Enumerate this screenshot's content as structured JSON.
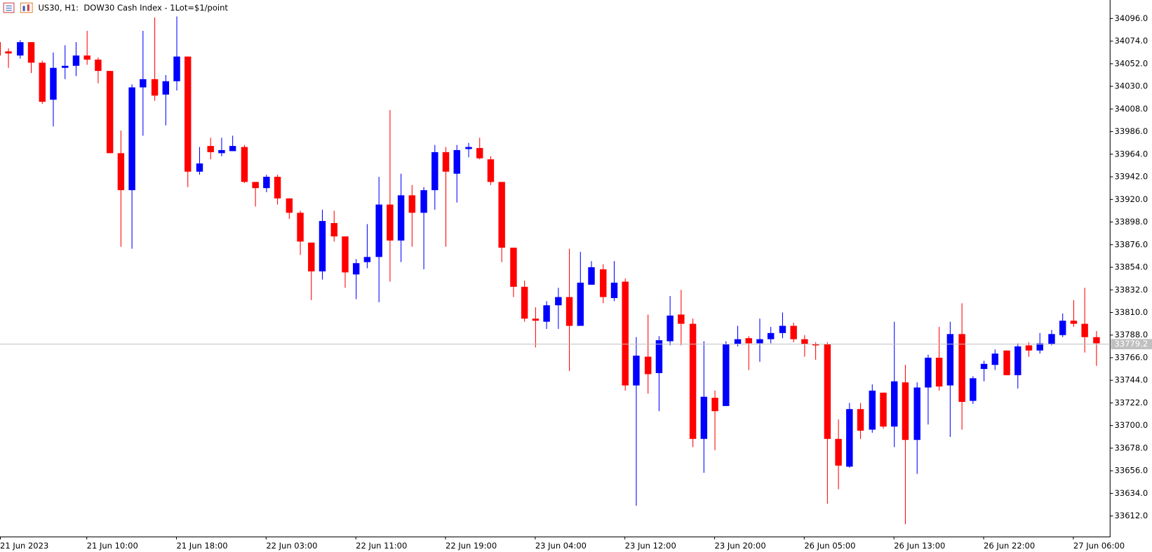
{
  "chart_data": {
    "type": "candlestick",
    "title": "US30, H1:  DOW30 Cash Index - 1Lot=$1/point",
    "up_color": "#0000ff",
    "down_color": "#ff0000",
    "categories": [
      "21 Jun 2023",
      null,
      null,
      null,
      null,
      null,
      null,
      null,
      "21 Jun 10:00",
      null,
      null,
      null,
      null,
      null,
      null,
      null,
      "21 Jun 18:00",
      null,
      null,
      null,
      null,
      null,
      null,
      null,
      "22 Jun 03:00",
      null,
      null,
      null,
      null,
      null,
      null,
      null,
      "22 Jun 11:00",
      null,
      null,
      null,
      null,
      null,
      null,
      null,
      "22 Jun 19:00",
      null,
      null,
      null,
      null,
      null,
      null,
      null,
      "23 Jun 04:00",
      null,
      null,
      null,
      null,
      null,
      null,
      null,
      "23 Jun 12:00",
      null,
      null,
      null,
      null,
      null,
      null,
      null,
      "23 Jun 20:00",
      null,
      null,
      null,
      null,
      null,
      null,
      null,
      "26 Jun 05:00",
      null,
      null,
      null,
      null,
      null,
      null,
      null,
      "26 Jun 13:00",
      null,
      null,
      null,
      null,
      null,
      null,
      null,
      "26 Jun 22:00",
      null,
      null,
      null,
      null,
      null,
      null,
      null,
      "27 Jun 06:00",
      null,
      null
    ],
    "open": [
      34073,
      34064,
      34060,
      34073,
      34053,
      34017,
      34048,
      34050,
      34060,
      34056,
      34045,
      33965,
      33929,
      34029,
      34037,
      34022,
      34035,
      34059,
      33947,
      33972,
      33965,
      33967,
      33971,
      33937,
      33931,
      33942,
      33921,
      33907,
      33878,
      33850,
      33897,
      33884,
      33847,
      33859,
      33864,
      33915,
      33880,
      33924,
      33907,
      33929,
      33966,
      33945,
      33969,
      33970,
      33959,
      33937,
      33873,
      33835,
      33804,
      33801,
      33817,
      33825,
      33797,
      33837,
      33852,
      33824,
      33840,
      33739,
      33767,
      33751,
      33782,
      33808,
      33799,
      33687,
      33727,
      33719,
      33779,
      33785,
      33780,
      33784,
      33790,
      33797,
      33784,
      33779,
      33779,
      33687,
      33660,
      33716,
      33696,
      33732,
      33699,
      33742,
      33686,
      33737,
      33766,
      33739,
      33789,
      33724,
      33755,
      33759,
      33773,
      33749,
      33778,
      33773,
      33779,
      33788,
      33802,
      33799,
      33786
    ],
    "high": [
      34073,
      34067,
      34075,
      34073,
      34055,
      34063,
      34070,
      34073,
      34084,
      34058,
      34045,
      33987,
      34032,
      34084,
      34097,
      34041,
      34098,
      34059,
      33971,
      33980,
      33980,
      33982,
      33973,
      33937,
      33944,
      33944,
      33921,
      33909,
      33878,
      33910,
      33909,
      33884,
      33862,
      33896,
      33942,
      34007,
      33945,
      33934,
      33932,
      33973,
      33971,
      33973,
      33975,
      33980,
      33962,
      33937,
      33873,
      33841,
      33815,
      33821,
      33834,
      33872,
      33869,
      33860,
      33857,
      33860,
      33843,
      33786,
      33808,
      33787,
      33826,
      33832,
      33804,
      33782,
      33734,
      33782,
      33797,
      33787,
      33804,
      33796,
      33810,
      33800,
      33788,
      33781,
      33781,
      33706,
      33722,
      33722,
      33740,
      33732,
      33801,
      33759,
      33742,
      33769,
      33796,
      33801,
      33819,
      33748,
      33763,
      33774,
      33773,
      33780,
      33781,
      33790,
      33793,
      33809,
      33822,
      33834,
      33792
    ],
    "low": [
      34060,
      34048,
      34057,
      34043,
      34013,
      33991,
      34037,
      34040,
      34051,
      34033,
      33965,
      33874,
      33872,
      33982,
      34016,
      33992,
      34026,
      33932,
      33944,
      33959,
      33962,
      33967,
      33936,
      33913,
      33927,
      33915,
      33901,
      33866,
      33822,
      33842,
      33879,
      33834,
      33823,
      33853,
      33820,
      33840,
      33859,
      33874,
      33852,
      33910,
      33874,
      33917,
      33961,
      33959,
      33934,
      33859,
      33825,
      33801,
      33776,
      33794,
      33794,
      33753,
      33797,
      33837,
      33819,
      33821,
      33734,
      33622,
      33731,
      33714,
      33778,
      33778,
      33679,
      33654,
      33676,
      33719,
      33777,
      33754,
      33762,
      33780,
      33785,
      33781,
      33767,
      33764,
      33624,
      33638,
      33659,
      33687,
      33693,
      33697,
      33679,
      33604,
      33653,
      33701,
      33734,
      33689,
      33696,
      33721,
      33743,
      33754,
      33749,
      33736,
      33767,
      33770,
      33778,
      33786,
      33796,
      33771,
      33758
    ],
    "close": [
      34060,
      34062,
      34073,
      34053,
      34015,
      34048,
      34050,
      34060,
      34056,
      34045,
      33965,
      33929,
      34029,
      34037,
      34021,
      34035,
      34059,
      33947,
      33955,
      33966,
      33968,
      33972,
      33937,
      33931,
      33942,
      33921,
      33907,
      33879,
      33850,
      33899,
      33884,
      33849,
      33858,
      33864,
      33915,
      33880,
      33924,
      33907,
      33929,
      33966,
      33947,
      33968,
      33971,
      33960,
      33937,
      33873,
      33835,
      33804,
      33802,
      33817,
      33825,
      33797,
      33839,
      33854,
      33825,
      33839,
      33739,
      33768,
      33750,
      33783,
      33807,
      33799,
      33687,
      33728,
      33714,
      33779,
      33784,
      33780,
      33784,
      33790,
      33797,
      33784,
      33779,
      33778,
      33687,
      33661,
      33716,
      33695,
      33734,
      33699,
      33743,
      33686,
      33737,
      33766,
      33738,
      33789,
      33723,
      33746,
      33760,
      33770,
      33749,
      33777,
      33773,
      33780,
      33789,
      33802,
      33799,
      33786,
      33780
    ],
    "current_price": 33779.2,
    "ylim": [
      33592,
      34114
    ],
    "yticks": [
      {
        "value": 33612,
        "label": "33612.0"
      },
      {
        "value": 33634,
        "label": "33634.0"
      },
      {
        "value": 33656,
        "label": "33656.0"
      },
      {
        "value": 33678,
        "label": "33678.0"
      },
      {
        "value": 33700,
        "label": "33700.0"
      },
      {
        "value": 33722,
        "label": "33722.0"
      },
      {
        "value": 33744,
        "label": "33744.0"
      },
      {
        "value": 33766,
        "label": "33766.0"
      },
      {
        "value": 33788,
        "label": "33788.0"
      },
      {
        "value": 33810,
        "label": "33810.0"
      },
      {
        "value": 33832,
        "label": "33832.0"
      },
      {
        "value": 33854,
        "label": "33854.0"
      },
      {
        "value": 33876,
        "label": "33876.0"
      },
      {
        "value": 33898,
        "label": "33898.0"
      },
      {
        "value": 33920,
        "label": "33920.0"
      },
      {
        "value": 33942,
        "label": "33942.0"
      },
      {
        "value": 33964,
        "label": "33964.0"
      },
      {
        "value": 33986,
        "label": "33986.0"
      },
      {
        "value": 34008,
        "label": "34008.0"
      },
      {
        "value": 34030,
        "label": "34030.0"
      },
      {
        "value": 34052,
        "label": "34052.0"
      },
      {
        "value": 34074,
        "label": "34074.0"
      },
      {
        "value": 34096,
        "label": "34096.0"
      }
    ]
  }
}
